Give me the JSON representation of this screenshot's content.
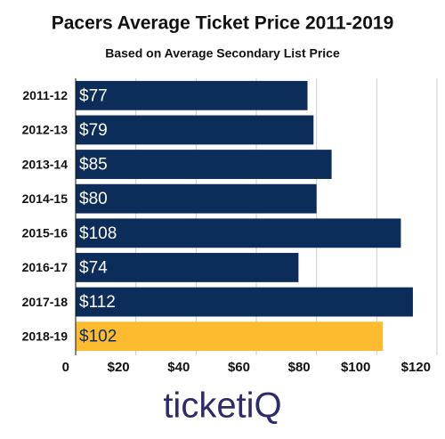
{
  "chart_data": {
    "type": "bar",
    "orientation": "horizontal",
    "title": "Pacers Average Ticket Price 2011-2019",
    "subtitle": "Based on Average Secondary List Price",
    "categories": [
      "2011-12",
      "2012-13",
      "2013-14",
      "2014-15",
      "2015-16",
      "2016-17",
      "2017-18",
      "2018-19"
    ],
    "values": [
      77,
      79,
      85,
      80,
      108,
      74,
      112,
      102
    ],
    "value_labels": [
      "$77",
      "$79",
      "$85",
      "$80",
      "$108",
      "$74",
      "$112",
      "$102"
    ],
    "colors": [
      "#0c2c5a",
      "#0c2c5a",
      "#0c2c5a",
      "#0c2c5a",
      "#0c2c5a",
      "#0c2c5a",
      "#0c2c5a",
      "#fdbb30"
    ],
    "xlim": [
      0,
      120
    ],
    "xticks": [
      0,
      {
        "value": 20,
        "label": "$20"
      },
      {
        "value": 40,
        "label": "$40"
      },
      {
        "value": 60,
        "label": "$60"
      },
      {
        "value": 80,
        "label": "$80"
      },
      {
        "value": 100,
        "label": "$100"
      },
      {
        "value": 120,
        "label": "$120"
      }
    ],
    "grid": true
  },
  "logo": "ticketiQ"
}
